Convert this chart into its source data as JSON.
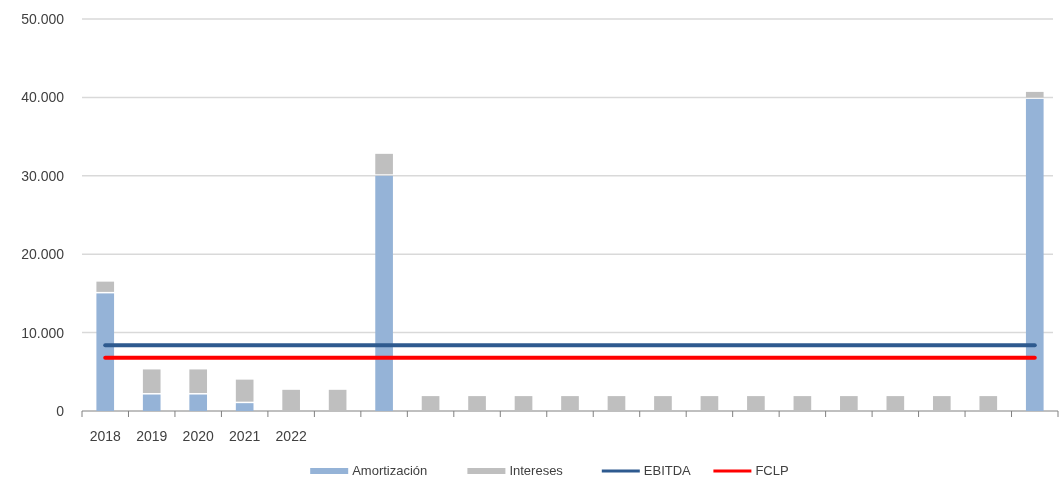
{
  "chart_data": {
    "type": "bar",
    "stacked": true,
    "categories": [
      "2018",
      "2019",
      "2020",
      "2021",
      "2022",
      null,
      null,
      null,
      null,
      null,
      null,
      null,
      null,
      null,
      null,
      null,
      null,
      null,
      null,
      null,
      null
    ],
    "series": [
      {
        "name": "Amortización",
        "color": "#95b3d7",
        "values": [
          15000,
          2100,
          2100,
          1000,
          0,
          0,
          30000,
          0,
          0,
          0,
          0,
          0,
          0,
          0,
          0,
          0,
          0,
          0,
          0,
          0,
          39800
        ]
      },
      {
        "name": "Intereses",
        "color": "#bfbfbf",
        "values": [
          1500,
          3200,
          3200,
          3000,
          2700,
          2700,
          2800,
          1900,
          1900,
          1900,
          1900,
          1900,
          1900,
          1900,
          1900,
          1900,
          1900,
          1900,
          1900,
          1900,
          900
        ]
      },
      {
        "name": "EBITDA",
        "type": "line",
        "color": "#2e5a8f",
        "values": [
          8400,
          8400,
          8400,
          8400,
          8400,
          8400,
          8400,
          8400,
          8400,
          8400,
          8400,
          8400,
          8400,
          8400,
          8400,
          8400,
          8400,
          8400,
          8400,
          8400,
          8400
        ]
      },
      {
        "name": "FCLP",
        "type": "line",
        "color": "#ff0000",
        "values": [
          6800,
          6800,
          6800,
          6800,
          6800,
          6800,
          6800,
          6800,
          6800,
          6800,
          6800,
          6800,
          6800,
          6800,
          6800,
          6800,
          6800,
          6800,
          6800,
          6800,
          6800
        ]
      }
    ],
    "ylim": [
      0,
      50000
    ],
    "yticks": [
      0,
      {
        "value": 10000,
        "label": "10.000"
      },
      {
        "value": 20000,
        "label": "20.000"
      },
      {
        "value": 30000,
        "label": "30.000"
      },
      {
        "value": 40000,
        "label": "40.000"
      },
      {
        "value": 50000,
        "label": "50.000"
      }
    ],
    "grid": "y",
    "legend": "bottom"
  }
}
